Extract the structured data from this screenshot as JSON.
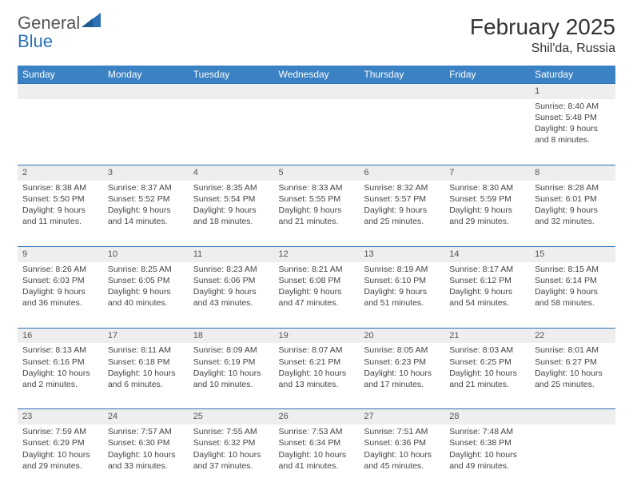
{
  "brand": {
    "word1": "General",
    "word2": "Blue"
  },
  "title": "February 2025",
  "location": "Shil'da, Russia",
  "colors": {
    "header_bg": "#3b82c4",
    "header_text": "#ffffff",
    "daynum_bg": "#eeeeee",
    "rule": "#2a72b5",
    "logo_gray": "#555555",
    "logo_blue": "#2a72b5"
  },
  "day_headers": [
    "Sunday",
    "Monday",
    "Tuesday",
    "Wednesday",
    "Thursday",
    "Friday",
    "Saturday"
  ],
  "weeks": [
    {
      "nums": [
        "",
        "",
        "",
        "",
        "",
        "",
        "1"
      ],
      "cells": [
        [],
        [],
        [],
        [],
        [],
        [],
        [
          "Sunrise: 8:40 AM",
          "Sunset: 5:48 PM",
          "Daylight: 9 hours",
          "and 8 minutes."
        ]
      ]
    },
    {
      "nums": [
        "2",
        "3",
        "4",
        "5",
        "6",
        "7",
        "8"
      ],
      "cells": [
        [
          "Sunrise: 8:38 AM",
          "Sunset: 5:50 PM",
          "Daylight: 9 hours",
          "and 11 minutes."
        ],
        [
          "Sunrise: 8:37 AM",
          "Sunset: 5:52 PM",
          "Daylight: 9 hours",
          "and 14 minutes."
        ],
        [
          "Sunrise: 8:35 AM",
          "Sunset: 5:54 PM",
          "Daylight: 9 hours",
          "and 18 minutes."
        ],
        [
          "Sunrise: 8:33 AM",
          "Sunset: 5:55 PM",
          "Daylight: 9 hours",
          "and 21 minutes."
        ],
        [
          "Sunrise: 8:32 AM",
          "Sunset: 5:57 PM",
          "Daylight: 9 hours",
          "and 25 minutes."
        ],
        [
          "Sunrise: 8:30 AM",
          "Sunset: 5:59 PM",
          "Daylight: 9 hours",
          "and 29 minutes."
        ],
        [
          "Sunrise: 8:28 AM",
          "Sunset: 6:01 PM",
          "Daylight: 9 hours",
          "and 32 minutes."
        ]
      ]
    },
    {
      "nums": [
        "9",
        "10",
        "11",
        "12",
        "13",
        "14",
        "15"
      ],
      "cells": [
        [
          "Sunrise: 8:26 AM",
          "Sunset: 6:03 PM",
          "Daylight: 9 hours",
          "and 36 minutes."
        ],
        [
          "Sunrise: 8:25 AM",
          "Sunset: 6:05 PM",
          "Daylight: 9 hours",
          "and 40 minutes."
        ],
        [
          "Sunrise: 8:23 AM",
          "Sunset: 6:06 PM",
          "Daylight: 9 hours",
          "and 43 minutes."
        ],
        [
          "Sunrise: 8:21 AM",
          "Sunset: 6:08 PM",
          "Daylight: 9 hours",
          "and 47 minutes."
        ],
        [
          "Sunrise: 8:19 AM",
          "Sunset: 6:10 PM",
          "Daylight: 9 hours",
          "and 51 minutes."
        ],
        [
          "Sunrise: 8:17 AM",
          "Sunset: 6:12 PM",
          "Daylight: 9 hours",
          "and 54 minutes."
        ],
        [
          "Sunrise: 8:15 AM",
          "Sunset: 6:14 PM",
          "Daylight: 9 hours",
          "and 58 minutes."
        ]
      ]
    },
    {
      "nums": [
        "16",
        "17",
        "18",
        "19",
        "20",
        "21",
        "22"
      ],
      "cells": [
        [
          "Sunrise: 8:13 AM",
          "Sunset: 6:16 PM",
          "Daylight: 10 hours",
          "and 2 minutes."
        ],
        [
          "Sunrise: 8:11 AM",
          "Sunset: 6:18 PM",
          "Daylight: 10 hours",
          "and 6 minutes."
        ],
        [
          "Sunrise: 8:09 AM",
          "Sunset: 6:19 PM",
          "Daylight: 10 hours",
          "and 10 minutes."
        ],
        [
          "Sunrise: 8:07 AM",
          "Sunset: 6:21 PM",
          "Daylight: 10 hours",
          "and 13 minutes."
        ],
        [
          "Sunrise: 8:05 AM",
          "Sunset: 6:23 PM",
          "Daylight: 10 hours",
          "and 17 minutes."
        ],
        [
          "Sunrise: 8:03 AM",
          "Sunset: 6:25 PM",
          "Daylight: 10 hours",
          "and 21 minutes."
        ],
        [
          "Sunrise: 8:01 AM",
          "Sunset: 6:27 PM",
          "Daylight: 10 hours",
          "and 25 minutes."
        ]
      ]
    },
    {
      "nums": [
        "23",
        "24",
        "25",
        "26",
        "27",
        "28",
        ""
      ],
      "cells": [
        [
          "Sunrise: 7:59 AM",
          "Sunset: 6:29 PM",
          "Daylight: 10 hours",
          "and 29 minutes."
        ],
        [
          "Sunrise: 7:57 AM",
          "Sunset: 6:30 PM",
          "Daylight: 10 hours",
          "and 33 minutes."
        ],
        [
          "Sunrise: 7:55 AM",
          "Sunset: 6:32 PM",
          "Daylight: 10 hours",
          "and 37 minutes."
        ],
        [
          "Sunrise: 7:53 AM",
          "Sunset: 6:34 PM",
          "Daylight: 10 hours",
          "and 41 minutes."
        ],
        [
          "Sunrise: 7:51 AM",
          "Sunset: 6:36 PM",
          "Daylight: 10 hours",
          "and 45 minutes."
        ],
        [
          "Sunrise: 7:48 AM",
          "Sunset: 6:38 PM",
          "Daylight: 10 hours",
          "and 49 minutes."
        ],
        []
      ]
    }
  ]
}
